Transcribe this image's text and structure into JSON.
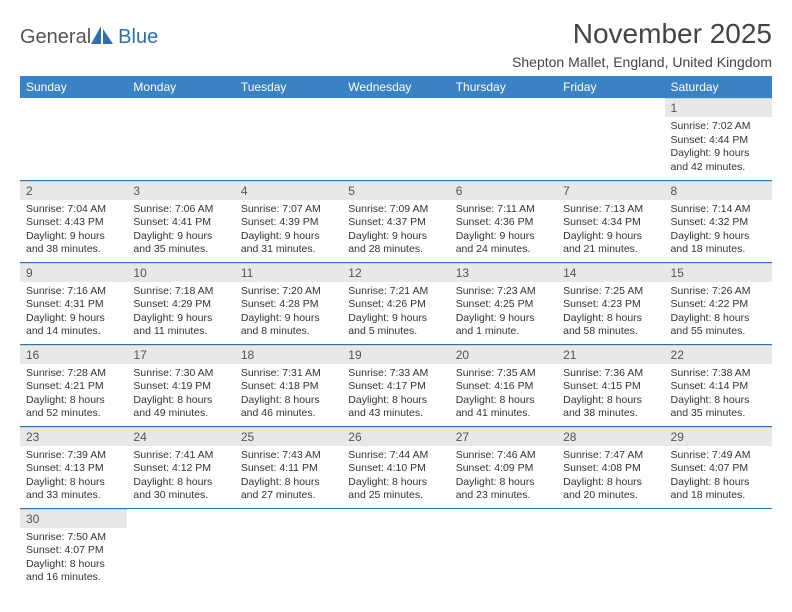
{
  "logo": {
    "text1": "General",
    "text2": "Blue"
  },
  "title": "November 2025",
  "location": "Shepton Mallet, England, United Kingdom",
  "colors": {
    "header_bg": "#3b82c4",
    "row_divider": "#2e6fb0",
    "daynum_bg": "#e8e8e8",
    "logo_accent": "#2e6fb0"
  },
  "weekdays": [
    "Sunday",
    "Monday",
    "Tuesday",
    "Wednesday",
    "Thursday",
    "Friday",
    "Saturday"
  ],
  "weeks": [
    [
      null,
      null,
      null,
      null,
      null,
      null,
      {
        "n": "1",
        "sr": "7:02 AM",
        "ss": "4:44 PM",
        "dl": "9 hours and 42 minutes."
      }
    ],
    [
      {
        "n": "2",
        "sr": "7:04 AM",
        "ss": "4:43 PM",
        "dl": "9 hours and 38 minutes."
      },
      {
        "n": "3",
        "sr": "7:06 AM",
        "ss": "4:41 PM",
        "dl": "9 hours and 35 minutes."
      },
      {
        "n": "4",
        "sr": "7:07 AM",
        "ss": "4:39 PM",
        "dl": "9 hours and 31 minutes."
      },
      {
        "n": "5",
        "sr": "7:09 AM",
        "ss": "4:37 PM",
        "dl": "9 hours and 28 minutes."
      },
      {
        "n": "6",
        "sr": "7:11 AM",
        "ss": "4:36 PM",
        "dl": "9 hours and 24 minutes."
      },
      {
        "n": "7",
        "sr": "7:13 AM",
        "ss": "4:34 PM",
        "dl": "9 hours and 21 minutes."
      },
      {
        "n": "8",
        "sr": "7:14 AM",
        "ss": "4:32 PM",
        "dl": "9 hours and 18 minutes."
      }
    ],
    [
      {
        "n": "9",
        "sr": "7:16 AM",
        "ss": "4:31 PM",
        "dl": "9 hours and 14 minutes."
      },
      {
        "n": "10",
        "sr": "7:18 AM",
        "ss": "4:29 PM",
        "dl": "9 hours and 11 minutes."
      },
      {
        "n": "11",
        "sr": "7:20 AM",
        "ss": "4:28 PM",
        "dl": "9 hours and 8 minutes."
      },
      {
        "n": "12",
        "sr": "7:21 AM",
        "ss": "4:26 PM",
        "dl": "9 hours and 5 minutes."
      },
      {
        "n": "13",
        "sr": "7:23 AM",
        "ss": "4:25 PM",
        "dl": "9 hours and 1 minute."
      },
      {
        "n": "14",
        "sr": "7:25 AM",
        "ss": "4:23 PM",
        "dl": "8 hours and 58 minutes."
      },
      {
        "n": "15",
        "sr": "7:26 AM",
        "ss": "4:22 PM",
        "dl": "8 hours and 55 minutes."
      }
    ],
    [
      {
        "n": "16",
        "sr": "7:28 AM",
        "ss": "4:21 PM",
        "dl": "8 hours and 52 minutes."
      },
      {
        "n": "17",
        "sr": "7:30 AM",
        "ss": "4:19 PM",
        "dl": "8 hours and 49 minutes."
      },
      {
        "n": "18",
        "sr": "7:31 AM",
        "ss": "4:18 PM",
        "dl": "8 hours and 46 minutes."
      },
      {
        "n": "19",
        "sr": "7:33 AM",
        "ss": "4:17 PM",
        "dl": "8 hours and 43 minutes."
      },
      {
        "n": "20",
        "sr": "7:35 AM",
        "ss": "4:16 PM",
        "dl": "8 hours and 41 minutes."
      },
      {
        "n": "21",
        "sr": "7:36 AM",
        "ss": "4:15 PM",
        "dl": "8 hours and 38 minutes."
      },
      {
        "n": "22",
        "sr": "7:38 AM",
        "ss": "4:14 PM",
        "dl": "8 hours and 35 minutes."
      }
    ],
    [
      {
        "n": "23",
        "sr": "7:39 AM",
        "ss": "4:13 PM",
        "dl": "8 hours and 33 minutes."
      },
      {
        "n": "24",
        "sr": "7:41 AM",
        "ss": "4:12 PM",
        "dl": "8 hours and 30 minutes."
      },
      {
        "n": "25",
        "sr": "7:43 AM",
        "ss": "4:11 PM",
        "dl": "8 hours and 27 minutes."
      },
      {
        "n": "26",
        "sr": "7:44 AM",
        "ss": "4:10 PM",
        "dl": "8 hours and 25 minutes."
      },
      {
        "n": "27",
        "sr": "7:46 AM",
        "ss": "4:09 PM",
        "dl": "8 hours and 23 minutes."
      },
      {
        "n": "28",
        "sr": "7:47 AM",
        "ss": "4:08 PM",
        "dl": "8 hours and 20 minutes."
      },
      {
        "n": "29",
        "sr": "7:49 AM",
        "ss": "4:07 PM",
        "dl": "8 hours and 18 minutes."
      }
    ],
    [
      {
        "n": "30",
        "sr": "7:50 AM",
        "ss": "4:07 PM",
        "dl": "8 hours and 16 minutes."
      },
      null,
      null,
      null,
      null,
      null,
      null
    ]
  ],
  "labels": {
    "sunrise": "Sunrise: ",
    "sunset": "Sunset: ",
    "daylight": "Daylight: "
  }
}
